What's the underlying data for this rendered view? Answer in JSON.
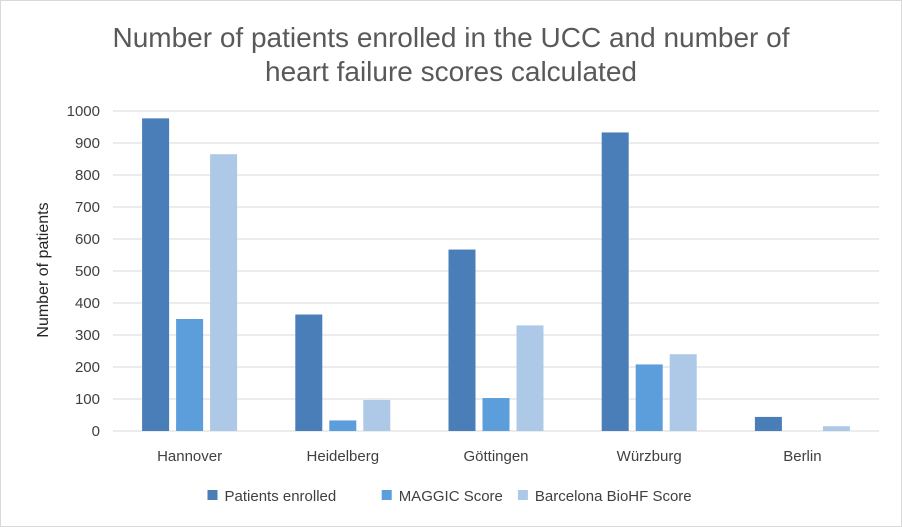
{
  "chart_data": {
    "type": "bar",
    "title_lines": [
      "Number of patients enrolled in the UCC and number of",
      "heart failure scores calculated"
    ],
    "xlabel": "",
    "ylabel": "Number of patients",
    "ylim": [
      0,
      1000
    ],
    "yticks": [
      "0",
      "100",
      "200",
      "300",
      "400",
      "500",
      "600",
      "700",
      "800",
      "900",
      "1000"
    ],
    "grid": true,
    "legend_position": "bottom",
    "categories": [
      "Hannover",
      "Heidelberg",
      "Göttingen",
      "Würzburg",
      "Berlin"
    ],
    "series": [
      {
        "name": "Patients enrolled",
        "color": "#4a7eb8",
        "values": [
          977,
          364,
          567,
          933,
          44
        ]
      },
      {
        "name": "MAGGIC Score",
        "color": "#5c9ddb",
        "values": [
          350,
          33,
          103,
          208,
          0
        ]
      },
      {
        "name": "Barcelona BioHF Score",
        "color": "#aec8e8",
        "values": [
          865,
          97,
          330,
          240,
          15
        ]
      }
    ]
  }
}
